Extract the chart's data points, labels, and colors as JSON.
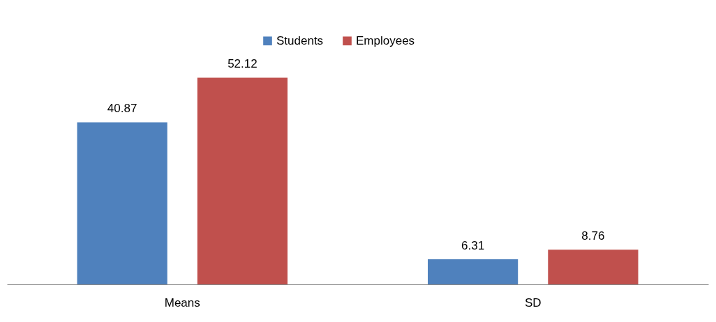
{
  "chart_data": {
    "type": "bar",
    "categories": [
      "Means",
      "SD"
    ],
    "series": [
      {
        "name": "Students",
        "color": "#4f81bd",
        "values": [
          40.87,
          6.31
        ]
      },
      {
        "name": "Employees",
        "color": "#c0504d",
        "values": [
          52.12,
          8.76
        ]
      }
    ],
    "data_labels": true,
    "legend": "top"
  }
}
